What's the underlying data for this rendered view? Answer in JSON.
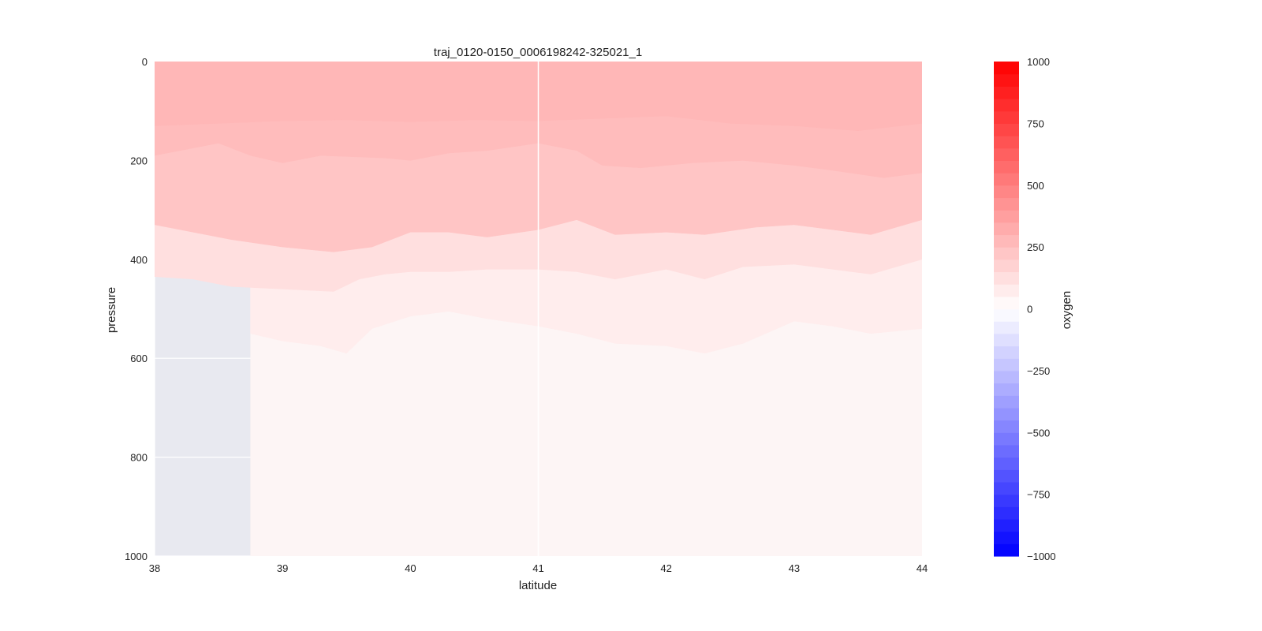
{
  "chart_data": {
    "type": "heatmap",
    "title": "traj_0120-0150_0006198242-325021_1",
    "xlabel": "latitude",
    "ylabel": "pressure",
    "xlim": [
      38,
      44
    ],
    "ylim": [
      0,
      1000
    ],
    "y_inverted": true,
    "xticks": [
      "38",
      "39",
      "40",
      "41",
      "42",
      "43",
      "44"
    ],
    "yticks": [
      "0",
      "200",
      "400",
      "600",
      "800",
      "1000"
    ],
    "grid": true,
    "background_color": "#e8e9f0",
    "colorbar": {
      "label": "oxygen",
      "range": [
        -1000,
        1000
      ],
      "levels": 40,
      "ticks": [
        "1000",
        "750",
        "500",
        "250",
        "0",
        "−250",
        "−500",
        "−750",
        "−1000"
      ],
      "colormap": "bwr",
      "high_color": "#ff0000",
      "low_color": "#0000ff"
    },
    "data_extent": {
      "x_start": 38.75,
      "x_end": 44,
      "x_start_near_surface": 38,
      "no_data_below_pressure_at_x_start": 540
    },
    "contours": [
      {
        "name": "band_200_250",
        "value_range": [
          200,
          250
        ],
        "color": "#ffbcbc",
        "lower_boundary": [
          [
            38,
            190
          ],
          [
            38.5,
            165
          ],
          [
            38.75,
            190
          ],
          [
            39,
            205
          ],
          [
            39.3,
            190
          ],
          [
            39.8,
            195
          ],
          [
            40,
            200
          ],
          [
            40.3,
            185
          ],
          [
            40.6,
            180
          ],
          [
            41,
            165
          ],
          [
            41.3,
            180
          ],
          [
            41.5,
            210
          ],
          [
            41.8,
            215
          ],
          [
            42.2,
            205
          ],
          [
            42.6,
            200
          ],
          [
            43,
            210
          ],
          [
            43.3,
            220
          ],
          [
            43.7,
            235
          ],
          [
            44,
            225
          ]
        ]
      },
      {
        "name": "band_150_200",
        "value_range": [
          150,
          200
        ],
        "color": "#ffc5c5",
        "lower_boundary": [
          [
            38,
            330
          ],
          [
            38.3,
            345
          ],
          [
            38.6,
            360
          ],
          [
            39,
            375
          ],
          [
            39.4,
            385
          ],
          [
            39.7,
            375
          ],
          [
            40,
            345
          ],
          [
            40.3,
            345
          ],
          [
            40.6,
            355
          ],
          [
            41,
            340
          ],
          [
            41.3,
            320
          ],
          [
            41.6,
            350
          ],
          [
            42,
            345
          ],
          [
            42.3,
            350
          ],
          [
            42.7,
            335
          ],
          [
            43,
            330
          ],
          [
            43.3,
            340
          ],
          [
            43.6,
            350
          ],
          [
            44,
            320
          ]
        ]
      },
      {
        "name": "band_100_150",
        "value_range": [
          100,
          150
        ],
        "color": "#ffdfdf",
        "lower_boundary": [
          [
            38,
            435
          ],
          [
            38.3,
            440
          ],
          [
            38.6,
            455
          ],
          [
            39,
            460
          ],
          [
            39.4,
            465
          ],
          [
            39.6,
            440
          ],
          [
            39.8,
            430
          ],
          [
            40,
            425
          ],
          [
            40.3,
            425
          ],
          [
            40.6,
            420
          ],
          [
            41,
            420
          ],
          [
            41.3,
            425
          ],
          [
            41.6,
            440
          ],
          [
            42,
            420
          ],
          [
            42.3,
            440
          ],
          [
            42.6,
            415
          ],
          [
            43,
            410
          ],
          [
            43.3,
            420
          ],
          [
            43.6,
            430
          ],
          [
            44,
            400
          ]
        ]
      },
      {
        "name": "band_50_100",
        "value_range": [
          50,
          100
        ],
        "color": "#ffeded",
        "lower_boundary": [
          [
            38.75,
            550
          ],
          [
            39,
            565
          ],
          [
            39.3,
            575
          ],
          [
            39.5,
            590
          ],
          [
            39.7,
            540
          ],
          [
            40,
            515
          ],
          [
            40.3,
            505
          ],
          [
            40.6,
            520
          ],
          [
            41,
            535
          ],
          [
            41.3,
            550
          ],
          [
            41.6,
            570
          ],
          [
            42,
            575
          ],
          [
            42.3,
            590
          ],
          [
            42.6,
            570
          ],
          [
            43,
            525
          ],
          [
            43.3,
            535
          ],
          [
            43.6,
            550
          ],
          [
            44,
            540
          ]
        ]
      },
      {
        "name": "band_0_50",
        "value_range": [
          0,
          50
        ],
        "color": "#fdf5f5",
        "lower_boundary": [
          [
            38.75,
            1000
          ],
          [
            44,
            1000
          ]
        ]
      }
    ],
    "surface_layer": {
      "value_range": [
        250,
        300
      ],
      "color": "#ffb7b7",
      "lower_boundary": [
        [
          38,
          130
        ],
        [
          38.5,
          125
        ],
        [
          39,
          120
        ],
        [
          39.5,
          118
        ],
        [
          40,
          122
        ],
        [
          40.5,
          118
        ],
        [
          41,
          120
        ],
        [
          41.5,
          115
        ],
        [
          42,
          110
        ],
        [
          42.5,
          125
        ],
        [
          43,
          130
        ],
        [
          43.5,
          140
        ],
        [
          44,
          125
        ]
      ]
    }
  }
}
